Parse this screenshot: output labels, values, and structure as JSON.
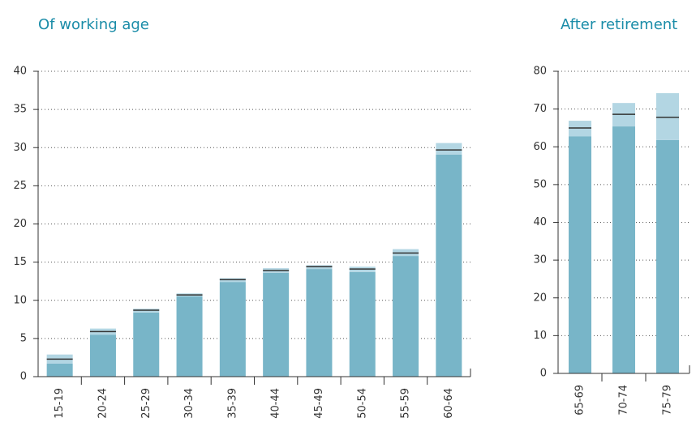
{
  "chart_data": [
    {
      "type": "bar",
      "title": "Of working age",
      "categories": [
        "15-19",
        "20-24",
        "25-29",
        "30-34",
        "35-39",
        "40-44",
        "45-49",
        "50-54",
        "55-59",
        "60-64"
      ],
      "series": [
        {
          "color": "#78b5c8",
          "values": [
            1.7,
            5.5,
            8.4,
            10.5,
            12.4,
            13.6,
            14.1,
            13.7,
            15.8,
            29.1
          ]
        },
        {
          "color": "#b3d6e3",
          "values": [
            1.2,
            0.8,
            0.5,
            0.4,
            0.5,
            0.6,
            0.5,
            0.7,
            0.9,
            1.5
          ]
        }
      ],
      "markers": {
        "color": "#333333",
        "values": [
          2.3,
          5.9,
          8.7,
          10.7,
          12.7,
          13.9,
          14.4,
          14.1,
          16.2,
          29.7
        ]
      },
      "ylim": [
        0,
        40
      ],
      "yticks": [
        0,
        5,
        10,
        15,
        20,
        25,
        30,
        35,
        40
      ],
      "grid": true
    },
    {
      "type": "bar",
      "title": "After retirement",
      "categories": [
        "65-69",
        "70-74",
        "75-79"
      ],
      "series": [
        {
          "color": "#78b5c8",
          "values": [
            62.8,
            65.4,
            61.8
          ]
        },
        {
          "color": "#b3d6e3",
          "values": [
            4.1,
            6.2,
            12.4
          ]
        }
      ],
      "markers": {
        "color": "#333333",
        "values": [
          65.0,
          68.6,
          67.8
        ]
      },
      "ylim": [
        0,
        80
      ],
      "yticks": [
        0,
        10,
        20,
        30,
        40,
        50,
        60,
        70,
        80
      ],
      "grid": true
    }
  ]
}
